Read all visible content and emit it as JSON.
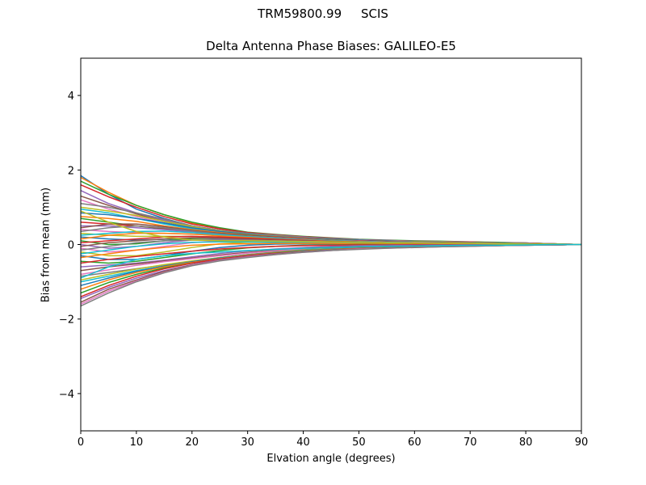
{
  "figure": {
    "suptitle": "TRM59800.99     SCIS"
  },
  "chart_data": {
    "type": "line",
    "title": "Delta Antenna Phase Biases: GALILEO-E5",
    "xlabel": "Elvation angle (degrees)",
    "ylabel": "Bias from mean (mm)",
    "xlim": [
      0,
      90
    ],
    "ylim": [
      -5,
      5
    ],
    "xticks": [
      0,
      10,
      20,
      30,
      40,
      50,
      60,
      70,
      80,
      90
    ],
    "yticks": [
      -4,
      -2,
      0,
      2,
      4
    ],
    "ytick_labels": [
      "−4",
      "−2",
      "0",
      "2",
      "4"
    ],
    "grid": false,
    "legend": "none",
    "colors": [
      "#1f77b4",
      "#ff7f0e",
      "#2ca02c",
      "#d62728",
      "#9467bd",
      "#8c564b",
      "#e377c2",
      "#7f7f7f",
      "#bcbd22",
      "#17becf"
    ],
    "x": [
      0,
      5,
      10,
      15,
      20,
      25,
      30,
      35,
      40,
      45,
      50,
      55,
      60,
      65,
      70,
      75,
      80,
      85,
      90
    ],
    "series": [
      {
        "values": [
          1.85,
          1.35,
          0.95,
          0.7,
          0.5,
          0.38,
          0.3,
          0.25,
          0.2,
          0.15,
          0.12,
          0.1,
          0.08,
          0.07,
          0.06,
          0.05,
          0.04,
          0.02,
          0.0
        ]
      },
      {
        "values": [
          1.8,
          1.4,
          1.05,
          0.8,
          0.58,
          0.42,
          0.32,
          0.26,
          0.2,
          0.16,
          0.13,
          0.11,
          0.09,
          0.08,
          0.07,
          0.05,
          0.04,
          0.02,
          0.0
        ]
      },
      {
        "values": [
          1.7,
          1.35,
          1.05,
          0.8,
          0.6,
          0.45,
          0.33,
          0.27,
          0.22,
          0.18,
          0.14,
          0.12,
          0.1,
          0.09,
          0.07,
          0.06,
          0.04,
          0.02,
          0.0
        ]
      },
      {
        "values": [
          1.6,
          1.28,
          1.0,
          0.75,
          0.55,
          0.42,
          0.32,
          0.26,
          0.21,
          0.17,
          0.13,
          0.11,
          0.09,
          0.08,
          0.07,
          0.05,
          0.04,
          0.02,
          0.0
        ]
      },
      {
        "values": [
          1.45,
          1.1,
          0.85,
          0.65,
          0.5,
          0.38,
          0.3,
          0.25,
          0.2,
          0.16,
          0.13,
          0.11,
          0.09,
          0.08,
          0.06,
          0.05,
          0.04,
          0.02,
          0.0
        ]
      },
      {
        "values": [
          1.3,
          1.05,
          0.82,
          0.62,
          0.47,
          0.36,
          0.28,
          0.22,
          0.18,
          0.15,
          0.12,
          0.1,
          0.08,
          0.07,
          0.06,
          0.05,
          0.03,
          0.02,
          0.0
        ]
      },
      {
        "values": [
          1.2,
          0.95,
          0.75,
          0.58,
          0.45,
          0.35,
          0.28,
          0.22,
          0.18,
          0.14,
          0.11,
          0.09,
          0.08,
          0.07,
          0.06,
          0.04,
          0.03,
          0.02,
          0.0
        ]
      },
      {
        "values": [
          1.1,
          1.0,
          0.85,
          0.68,
          0.5,
          0.38,
          0.3,
          0.24,
          0.19,
          0.15,
          0.12,
          0.1,
          0.08,
          0.07,
          0.06,
          0.05,
          0.03,
          0.02,
          0.0
        ]
      },
      {
        "values": [
          1.0,
          0.9,
          0.78,
          0.62,
          0.48,
          0.36,
          0.28,
          0.23,
          0.18,
          0.14,
          0.11,
          0.09,
          0.08,
          0.07,
          0.05,
          0.04,
          0.03,
          0.01,
          0.0
        ]
      },
      {
        "values": [
          0.95,
          0.85,
          0.7,
          0.55,
          0.42,
          0.33,
          0.27,
          0.22,
          0.17,
          0.14,
          0.11,
          0.09,
          0.07,
          0.06,
          0.05,
          0.04,
          0.03,
          0.01,
          0.0
        ]
      },
      {
        "values": [
          0.85,
          0.8,
          0.7,
          0.58,
          0.45,
          0.35,
          0.28,
          0.22,
          0.18,
          0.14,
          0.11,
          0.09,
          0.07,
          0.06,
          0.05,
          0.04,
          0.03,
          0.01,
          0.0
        ]
      },
      {
        "values": [
          0.75,
          0.7,
          0.62,
          0.5,
          0.4,
          0.32,
          0.26,
          0.21,
          0.17,
          0.13,
          0.1,
          0.08,
          0.07,
          0.06,
          0.05,
          0.04,
          0.03,
          0.01,
          0.0
        ]
      },
      {
        "values": [
          0.7,
          0.6,
          0.5,
          0.42,
          0.36,
          0.3,
          0.25,
          0.2,
          0.16,
          0.13,
          0.1,
          0.08,
          0.07,
          0.06,
          0.05,
          0.04,
          0.02,
          0.01,
          0.0
        ]
      },
      {
        "values": [
          0.6,
          0.55,
          0.5,
          0.44,
          0.37,
          0.3,
          0.24,
          0.2,
          0.16,
          0.12,
          0.1,
          0.08,
          0.06,
          0.05,
          0.04,
          0.03,
          0.02,
          0.01,
          0.0
        ]
      },
      {
        "values": [
          0.5,
          0.5,
          0.45,
          0.4,
          0.34,
          0.28,
          0.23,
          0.19,
          0.15,
          0.12,
          0.09,
          0.07,
          0.06,
          0.05,
          0.04,
          0.03,
          0.02,
          0.01,
          0.0
        ]
      },
      {
        "values": [
          0.45,
          0.55,
          0.55,
          0.48,
          0.38,
          0.3,
          0.24,
          0.19,
          0.15,
          0.12,
          0.09,
          0.07,
          0.06,
          0.05,
          0.04,
          0.03,
          0.02,
          0.01,
          0.0
        ]
      },
      {
        "values": [
          0.4,
          0.35,
          0.32,
          0.3,
          0.28,
          0.25,
          0.22,
          0.18,
          0.14,
          0.11,
          0.09,
          0.07,
          0.06,
          0.05,
          0.04,
          0.03,
          0.02,
          0.01,
          0.0
        ]
      },
      {
        "values": [
          0.35,
          0.45,
          0.5,
          0.45,
          0.36,
          0.28,
          0.22,
          0.18,
          0.14,
          0.11,
          0.08,
          0.07,
          0.05,
          0.04,
          0.04,
          0.03,
          0.02,
          0.01,
          0.0
        ]
      },
      {
        "values": [
          0.3,
          0.25,
          0.22,
          0.22,
          0.22,
          0.2,
          0.18,
          0.15,
          0.12,
          0.1,
          0.08,
          0.06,
          0.05,
          0.04,
          0.03,
          0.03,
          0.02,
          0.01,
          0.0
        ]
      },
      {
        "values": [
          0.25,
          0.3,
          0.35,
          0.36,
          0.32,
          0.26,
          0.21,
          0.17,
          0.13,
          0.1,
          0.08,
          0.06,
          0.05,
          0.04,
          0.03,
          0.03,
          0.02,
          0.01,
          0.0
        ]
      },
      {
        "values": [
          0.2,
          0.15,
          0.12,
          0.14,
          0.17,
          0.18,
          0.17,
          0.14,
          0.11,
          0.09,
          0.07,
          0.05,
          0.04,
          0.04,
          0.03,
          0.02,
          0.02,
          0.01,
          0.0
        ]
      },
      {
        "values": [
          0.15,
          0.25,
          0.3,
          0.3,
          0.28,
          0.23,
          0.19,
          0.15,
          0.12,
          0.09,
          0.07,
          0.05,
          0.04,
          0.04,
          0.03,
          0.02,
          0.02,
          0.01,
          0.0
        ]
      },
      {
        "values": [
          0.1,
          0.0,
          0.02,
          0.1,
          0.16,
          0.17,
          0.16,
          0.13,
          0.1,
          0.08,
          0.06,
          0.05,
          0.04,
          0.03,
          0.03,
          0.02,
          0.01,
          0.01,
          0.0
        ]
      },
      {
        "values": [
          0.05,
          0.1,
          0.15,
          0.2,
          0.22,
          0.2,
          0.17,
          0.14,
          0.11,
          0.08,
          0.06,
          0.05,
          0.04,
          0.03,
          0.03,
          0.02,
          0.01,
          0.0,
          0.0
        ]
      },
      {
        "values": [
          0.0,
          -0.1,
          -0.05,
          0.05,
          0.12,
          0.14,
          0.14,
          0.12,
          0.1,
          0.08,
          0.06,
          0.05,
          0.04,
          0.03,
          0.02,
          0.02,
          0.01,
          0.0,
          0.0
        ]
      },
      {
        "values": [
          -0.05,
          0.05,
          0.1,
          0.15,
          0.18,
          0.17,
          0.15,
          0.12,
          0.1,
          0.08,
          0.06,
          0.04,
          0.03,
          0.03,
          0.02,
          0.02,
          0.01,
          0.0,
          0.0
        ]
      },
      {
        "values": [
          -0.1,
          -0.2,
          -0.15,
          -0.05,
          0.05,
          0.1,
          0.11,
          0.1,
          0.08,
          0.07,
          0.05,
          0.04,
          0.03,
          0.03,
          0.02,
          0.02,
          0.01,
          0.0,
          0.0
        ]
      },
      {
        "values": [
          -0.15,
          -0.05,
          0.05,
          0.1,
          0.12,
          0.12,
          0.11,
          0.1,
          0.08,
          0.06,
          0.05,
          0.04,
          0.03,
          0.02,
          0.02,
          0.01,
          0.01,
          0.0,
          0.0
        ]
      },
      {
        "values": [
          -0.2,
          -0.3,
          -0.3,
          -0.2,
          -0.08,
          0.02,
          0.06,
          0.07,
          0.06,
          0.05,
          0.04,
          0.03,
          0.03,
          0.02,
          0.02,
          0.01,
          0.01,
          0.0,
          0.0
        ]
      },
      {
        "values": [
          -0.25,
          -0.15,
          -0.05,
          0.02,
          0.06,
          0.07,
          0.07,
          0.06,
          0.05,
          0.04,
          0.04,
          0.03,
          0.02,
          0.02,
          0.01,
          0.01,
          0.01,
          0.0,
          0.0
        ]
      },
      {
        "values": [
          -0.3,
          -0.4,
          -0.4,
          -0.3,
          -0.18,
          -0.08,
          -0.02,
          0.01,
          0.02,
          0.02,
          0.02,
          0.02,
          0.02,
          0.01,
          0.01,
          0.01,
          0.0,
          0.0,
          0.0
        ]
      },
      {
        "values": [
          -0.35,
          -0.25,
          -0.15,
          -0.08,
          -0.02,
          0.01,
          0.02,
          0.03,
          0.03,
          0.03,
          0.02,
          0.02,
          0.02,
          0.01,
          0.01,
          0.01,
          0.0,
          0.0,
          0.0
        ]
      },
      {
        "values": [
          -0.45,
          -0.5,
          -0.45,
          -0.35,
          -0.25,
          -0.16,
          -0.09,
          -0.05,
          -0.02,
          -0.01,
          0.0,
          0.0,
          0.0,
          0.0,
          0.0,
          0.0,
          0.0,
          0.0,
          0.0
        ]
      },
      {
        "values": [
          -0.5,
          -0.4,
          -0.32,
          -0.25,
          -0.18,
          -0.12,
          -0.08,
          -0.05,
          -0.03,
          -0.02,
          -0.01,
          -0.01,
          0.0,
          0.0,
          0.0,
          0.0,
          0.0,
          0.0,
          0.0
        ]
      },
      {
        "values": [
          -0.6,
          -0.55,
          -0.5,
          -0.42,
          -0.33,
          -0.24,
          -0.17,
          -0.12,
          -0.08,
          -0.05,
          -0.03,
          -0.02,
          -0.02,
          -0.01,
          -0.01,
          -0.01,
          0.0,
          0.0,
          0.0
        ]
      },
      {
        "values": [
          -0.7,
          -0.6,
          -0.52,
          -0.44,
          -0.36,
          -0.28,
          -0.21,
          -0.15,
          -0.1,
          -0.07,
          -0.05,
          -0.04,
          -0.03,
          -0.02,
          -0.02,
          -0.01,
          -0.01,
          0.0,
          0.0
        ]
      },
      {
        "values": [
          -0.8,
          -0.68,
          -0.56,
          -0.46,
          -0.38,
          -0.3,
          -0.23,
          -0.17,
          -0.12,
          -0.09,
          -0.06,
          -0.05,
          -0.04,
          -0.03,
          -0.02,
          -0.02,
          -0.01,
          0.0,
          0.0
        ]
      },
      {
        "values": [
          -0.85,
          -0.75,
          -0.65,
          -0.55,
          -0.45,
          -0.35,
          -0.27,
          -0.2,
          -0.14,
          -0.1,
          -0.07,
          -0.05,
          -0.04,
          -0.03,
          -0.02,
          -0.02,
          -0.01,
          0.0,
          0.0
        ]
      },
      {
        "values": [
          -0.95,
          -0.8,
          -0.66,
          -0.54,
          -0.44,
          -0.35,
          -0.27,
          -0.2,
          -0.15,
          -0.11,
          -0.08,
          -0.06,
          -0.05,
          -0.04,
          -0.03,
          -0.02,
          -0.01,
          0.0,
          0.0
        ]
      },
      {
        "values": [
          -1.0,
          -0.85,
          -0.7,
          -0.58,
          -0.47,
          -0.37,
          -0.29,
          -0.22,
          -0.16,
          -0.12,
          -0.09,
          -0.07,
          -0.05,
          -0.04,
          -0.03,
          -0.02,
          -0.01,
          -0.01,
          0.0
        ]
      },
      {
        "values": [
          -1.1,
          -0.9,
          -0.72,
          -0.58,
          -0.46,
          -0.36,
          -0.28,
          -0.21,
          -0.16,
          -0.12,
          -0.09,
          -0.07,
          -0.05,
          -0.04,
          -0.03,
          -0.02,
          -0.01,
          -0.01,
          0.0
        ]
      },
      {
        "values": [
          -1.2,
          -0.95,
          -0.75,
          -0.6,
          -0.48,
          -0.38,
          -0.29,
          -0.22,
          -0.17,
          -0.13,
          -0.1,
          -0.08,
          -0.06,
          -0.04,
          -0.03,
          -0.02,
          -0.01,
          -0.01,
          0.0
        ]
      },
      {
        "values": [
          -1.3,
          -1.02,
          -0.8,
          -0.63,
          -0.5,
          -0.39,
          -0.3,
          -0.23,
          -0.18,
          -0.14,
          -0.11,
          -0.08,
          -0.06,
          -0.05,
          -0.04,
          -0.03,
          -0.02,
          -0.01,
          0.0
        ]
      },
      {
        "values": [
          -1.4,
          -1.1,
          -0.85,
          -0.65,
          -0.5,
          -0.39,
          -0.3,
          -0.24,
          -0.19,
          -0.15,
          -0.11,
          -0.09,
          -0.07,
          -0.05,
          -0.04,
          -0.03,
          -0.02,
          -0.01,
          0.0
        ]
      },
      {
        "values": [
          -1.45,
          -1.15,
          -0.9,
          -0.7,
          -0.54,
          -0.41,
          -0.32,
          -0.25,
          -0.19,
          -0.15,
          -0.12,
          -0.09,
          -0.07,
          -0.05,
          -0.04,
          -0.03,
          -0.02,
          -0.01,
          0.0
        ]
      },
      {
        "values": [
          -1.55,
          -1.2,
          -0.95,
          -0.72,
          -0.55,
          -0.42,
          -0.33,
          -0.26,
          -0.2,
          -0.16,
          -0.12,
          -0.09,
          -0.07,
          -0.06,
          -0.04,
          -0.03,
          -0.02,
          -0.01,
          0.0
        ]
      },
      {
        "values": [
          -1.6,
          -1.25,
          -0.98,
          -0.75,
          -0.56,
          -0.43,
          -0.34,
          -0.27,
          -0.21,
          -0.16,
          -0.12,
          -0.1,
          -0.08,
          -0.06,
          -0.05,
          -0.03,
          -0.02,
          -0.01,
          0.0
        ]
      },
      {
        "values": [
          -1.65,
          -1.3,
          -1.0,
          -0.76,
          -0.57,
          -0.44,
          -0.35,
          -0.27,
          -0.21,
          -0.16,
          -0.13,
          -0.1,
          -0.08,
          -0.06,
          -0.05,
          -0.03,
          -0.02,
          -0.01,
          0.0
        ]
      },
      {
        "values": [
          0.9,
          0.6,
          0.35,
          0.2,
          0.12,
          0.1,
          0.1,
          0.09,
          0.08,
          0.07,
          0.06,
          0.05,
          0.04,
          0.03,
          0.03,
          0.02,
          0.01,
          0.01,
          0.0
        ]
      },
      {
        "values": [
          -0.9,
          -0.6,
          -0.4,
          -0.3,
          -0.24,
          -0.2,
          -0.16,
          -0.13,
          -0.1,
          -0.08,
          -0.06,
          -0.05,
          -0.04,
          -0.03,
          -0.02,
          -0.02,
          -0.01,
          0.0,
          0.0
        ]
      }
    ]
  }
}
